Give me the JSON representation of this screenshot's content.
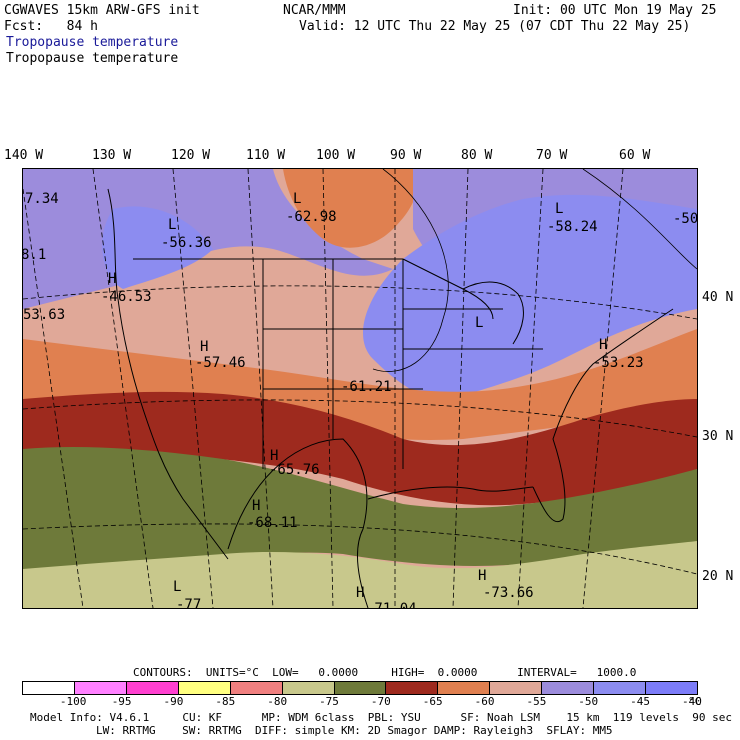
{
  "header": {
    "line1_left": "CGWAVES 15km ARW-GFS init",
    "line1_center": "NCAR/MMM",
    "line1_right": "Init: 00 UTC Mon 19 May 25",
    "line2_left": "Fcst:   84 h",
    "line2_right": "Valid: 12 UTC Thu 22 May 25 (07 CDT Thu 22 May 25)",
    "field_title_colored": "Tropopause temperature",
    "field_title": "Tropopause temperature"
  },
  "longitudes": [
    "140 W",
    "130 W",
    "120 W",
    "110 W",
    "100 W",
    "90 W",
    "80 W",
    "70 W",
    "60 W"
  ],
  "latitudes": [
    "40 N",
    "30 N",
    "20 N"
  ],
  "map_labels": [
    {
      "text": "7.34"
    },
    {
      "text": "8.1"
    },
    {
      "text": "53.63"
    },
    {
      "text": "L"
    },
    {
      "text": "-56.36"
    },
    {
      "text": "H"
    },
    {
      "text": "-46.53"
    },
    {
      "text": "L"
    },
    {
      "text": "-62.98"
    },
    {
      "text": "L"
    },
    {
      "text": "-58.24"
    },
    {
      "text": "-50"
    },
    {
      "text": "H"
    },
    {
      "text": "-57.46"
    },
    {
      "text": "-61.21"
    },
    {
      "text": "L"
    },
    {
      "text": "H"
    },
    {
      "text": "-53.23"
    },
    {
      "text": "H"
    },
    {
      "text": "-65.76"
    },
    {
      "text": "H"
    },
    {
      "text": "-68.11"
    },
    {
      "text": "L"
    },
    {
      "text": "-77"
    },
    {
      "text": "H"
    },
    {
      "text": "-71.04"
    },
    {
      "text": "H"
    },
    {
      "text": "-73.66"
    }
  ],
  "contours_line": "CONTOURS:  UNITS=°C  LOW=   0.0000     HIGH=  0.0000      INTERVAL=   1000.0",
  "legend": {
    "colors": [
      "#ffffff",
      "#ff80ff",
      "#ff40d0",
      "#ffff80",
      "#f08080",
      "#c8c88c",
      "#6e7a3a",
      "#9e2a1e",
      "#e08050",
      "#e0a898",
      "#9c8cdc",
      "#8c8cf0",
      "#7c7cf8"
    ],
    "ticks": [
      "-100",
      "-95",
      "-90",
      "-85",
      "-80",
      "-75",
      "-70",
      "-65",
      "-60",
      "-55",
      "-50",
      "-45",
      "-40",
      "°C"
    ]
  },
  "footer": {
    "line1": "Model Info: V4.6.1     CU: KF      MP: WDM 6class  PBL: YSU      SF: Noah LSM    15 km  119 levels  90 sec",
    "line2": "LW: RRTMG    SW: RRTMG  DIFF: simple KM: 2D Smagor DAMP: Rayleigh3  SFLAY: MM5"
  },
  "colors": {
    "purple_band": "#9c8cdc",
    "blue_band": "#8c8cf0",
    "salmon_band": "#e0a898",
    "orange_band": "#e08050",
    "red_band": "#9e2a1e",
    "olive_band": "#6e7a3a",
    "tan_band": "#c8c88c"
  }
}
